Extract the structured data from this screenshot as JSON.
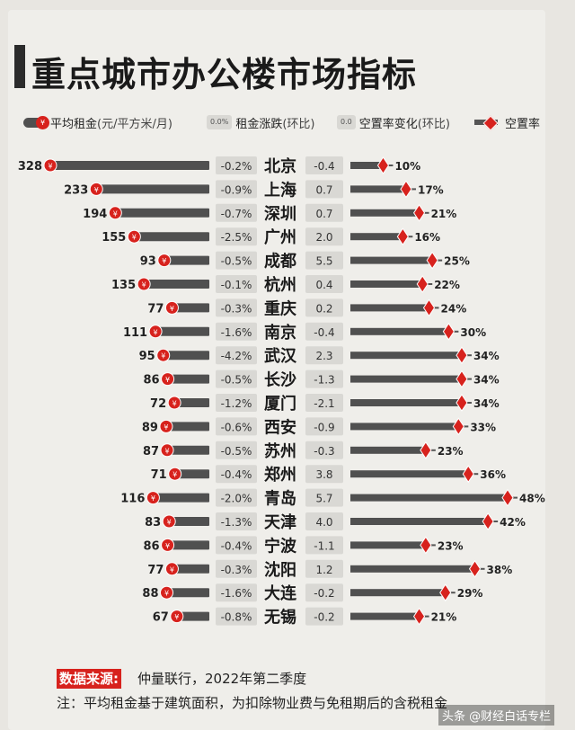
{
  "title": "重点城市办公楼市场指标",
  "legend": {
    "rent": "平均租金",
    "rent_unit": "(元/平方米/月)",
    "rent_change": "租金涨跌",
    "rent_change_unit": "(环比)",
    "rent_change_sample": "0.0%",
    "vacancy_change": "空置率变化",
    "vacancy_change_unit": "(环比)",
    "vacancy_change_sample": "0.0",
    "vacancy": "空置率"
  },
  "yen_symbol": "¥",
  "source_label": "数据来源:",
  "source_text": "仲量联行，2022年第二季度",
  "note": "注：平均租金基于建筑面积，为扣除物业费与免租期后的含税租金",
  "watermark": "头条 @财经白话专栏",
  "colors": {
    "accent": "#d7221d",
    "bar": "#505050",
    "box": "#d9d8d4"
  },
  "chart_data": {
    "type": "table",
    "columns": [
      "平均租金(元/平方米/月)",
      "租金涨跌(环比)",
      "城市",
      "空置率变化(环比)",
      "空置率"
    ],
    "rows": [
      {
        "rent": 328,
        "rent_change": "-0.2%",
        "city": "北京",
        "vac_change": "-0.4",
        "vacancy": 10
      },
      {
        "rent": 233,
        "rent_change": "-0.9%",
        "city": "上海",
        "vac_change": "0.7",
        "vacancy": 17
      },
      {
        "rent": 194,
        "rent_change": "-0.7%",
        "city": "深圳",
        "vac_change": "0.7",
        "vacancy": 21
      },
      {
        "rent": 155,
        "rent_change": "-2.5%",
        "city": "广州",
        "vac_change": "2.0",
        "vacancy": 16
      },
      {
        "rent": 93,
        "rent_change": "-0.5%",
        "city": "成都",
        "vac_change": "5.5",
        "vacancy": 25
      },
      {
        "rent": 135,
        "rent_change": "-0.1%",
        "city": "杭州",
        "vac_change": "0.4",
        "vacancy": 22
      },
      {
        "rent": 77,
        "rent_change": "-0.3%",
        "city": "重庆",
        "vac_change": "0.2",
        "vacancy": 24
      },
      {
        "rent": 111,
        "rent_change": "-1.6%",
        "city": "南京",
        "vac_change": "-0.4",
        "vacancy": 30
      },
      {
        "rent": 95,
        "rent_change": "-4.2%",
        "city": "武汉",
        "vac_change": "2.3",
        "vacancy": 34
      },
      {
        "rent": 86,
        "rent_change": "-0.5%",
        "city": "长沙",
        "vac_change": "-1.3",
        "vacancy": 34
      },
      {
        "rent": 72,
        "rent_change": "-1.2%",
        "city": "厦门",
        "vac_change": "-2.1",
        "vacancy": 34
      },
      {
        "rent": 89,
        "rent_change": "-0.6%",
        "city": "西安",
        "vac_change": "-0.9",
        "vacancy": 33
      },
      {
        "rent": 87,
        "rent_change": "-0.5%",
        "city": "苏州",
        "vac_change": "-0.3",
        "vacancy": 23
      },
      {
        "rent": 71,
        "rent_change": "-0.4%",
        "city": "郑州",
        "vac_change": "3.8",
        "vacancy": 36
      },
      {
        "rent": 116,
        "rent_change": "-2.0%",
        "city": "青岛",
        "vac_change": "5.7",
        "vacancy": 48
      },
      {
        "rent": 83,
        "rent_change": "-1.3%",
        "city": "天津",
        "vac_change": "4.0",
        "vacancy": 42
      },
      {
        "rent": 86,
        "rent_change": "-0.4%",
        "city": "宁波",
        "vac_change": "-1.1",
        "vacancy": 23
      },
      {
        "rent": 77,
        "rent_change": "-0.3%",
        "city": "沈阳",
        "vac_change": "1.2",
        "vacancy": 38
      },
      {
        "rent": 88,
        "rent_change": "-1.6%",
        "city": "大连",
        "vac_change": "-0.2",
        "vacancy": 29
      },
      {
        "rent": 67,
        "rent_change": "-0.8%",
        "city": "无锡",
        "vac_change": "-0.2",
        "vacancy": 21
      }
    ]
  }
}
